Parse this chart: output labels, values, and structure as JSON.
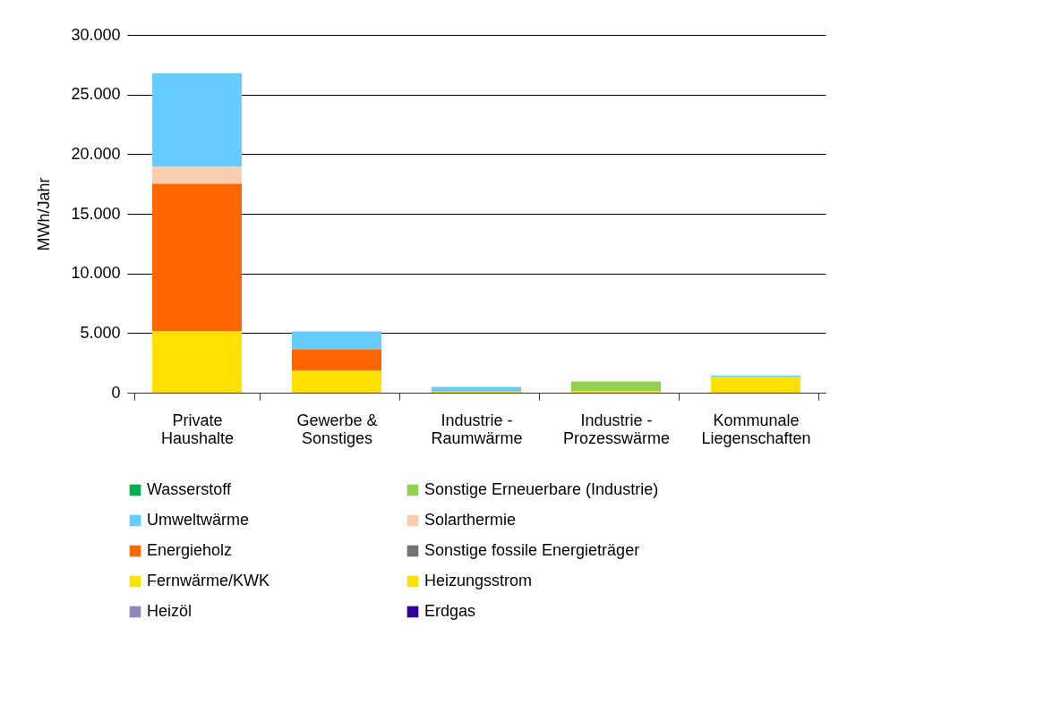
{
  "chart_data": {
    "type": "bar",
    "stacked": true,
    "ylabel": "MWh/Jahr",
    "categories": [
      "Private Haushalte",
      "Gewerbe & Sonstiges",
      "Industrie - Raumwärme",
      "Industrie - Prozesswärme",
      "Kommunale Liegenschaften"
    ],
    "series": [
      {
        "name": "Erdgas",
        "color": "#330099",
        "values": [
          null,
          null,
          null,
          null,
          null
        ]
      },
      {
        "name": "Heizöl",
        "color": "#8e86c0",
        "values": [
          null,
          null,
          null,
          null,
          null
        ]
      },
      {
        "name": "Heizungsstrom",
        "color": "#ffe100",
        "values": [
          5150,
          1850,
          90,
          130,
          1350
        ]
      },
      {
        "name": "Fernwärme/KWK",
        "color": "#ffe100",
        "values": [
          null,
          null,
          null,
          null,
          null
        ]
      },
      {
        "name": "Sonstige fossile Energieträger",
        "color": "#767171",
        "values": [
          null,
          null,
          null,
          null,
          null
        ]
      },
      {
        "name": "Energieholz",
        "color": "#ff6600",
        "values": [
          12380,
          1800,
          null,
          null,
          null
        ]
      },
      {
        "name": "Solarthermie",
        "color": "#fcceb0",
        "values": [
          1420,
          null,
          null,
          null,
          null
        ]
      },
      {
        "name": "Umweltwärme",
        "color": "#66ccff",
        "values": [
          7830,
          1490,
          390,
          null,
          90
        ]
      },
      {
        "name": "Sonstige Erneuerbare (Industrie)",
        "color": "#92d050",
        "values": [
          null,
          null,
          null,
          800,
          null
        ]
      },
      {
        "name": "Wasserstoff",
        "color": "#00b050",
        "values": [
          null,
          null,
          null,
          null,
          null
        ]
      }
    ],
    "ylim": [
      0,
      30000
    ],
    "yticks": [
      {
        "value": 0,
        "label": "0"
      },
      {
        "value": 5000,
        "label": "5.000"
      },
      {
        "value": 10000,
        "label": "10.000"
      },
      {
        "value": 15000,
        "label": "15.000"
      },
      {
        "value": 20000,
        "label": "20.000"
      },
      {
        "value": 25000,
        "label": "25.000"
      },
      {
        "value": 30000,
        "label": "30.000"
      }
    ],
    "grid": "y",
    "legend": "bottom"
  }
}
